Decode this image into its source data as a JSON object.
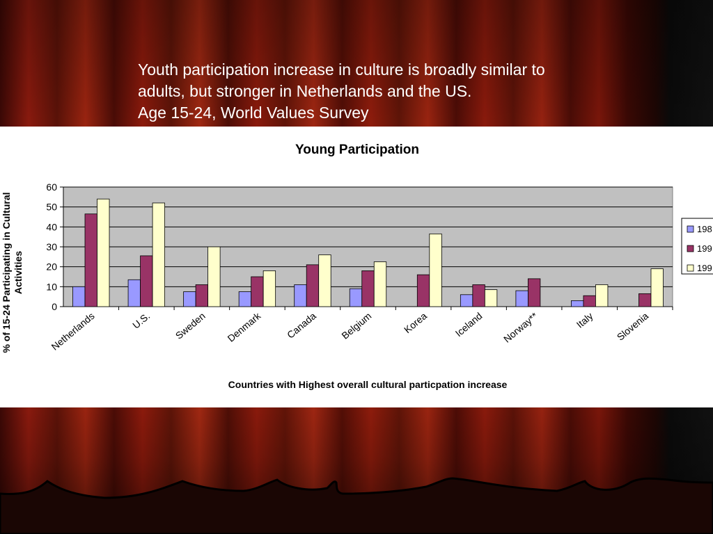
{
  "slide": {
    "heading_line1": "Youth participation increase in culture is broadly similar to",
    "heading_line2": "adults, but stronger in Netherlands and the US.",
    "heading_line3": "Age 15-24, World Values Survey"
  },
  "colors": {
    "series": [
      "#9999ff",
      "#993366",
      "#ffffcc"
    ],
    "plot_background": "#c0c0c0"
  },
  "chart_data": {
    "type": "bar",
    "title": "Young Participation",
    "xlabel": "Countries with Highest overall cultural particpation increase",
    "ylabel": "% of 15-24 Participating in Cultural Activities",
    "ylabel_lines": [
      "% of 15-24 Participating in Cultural",
      "Activities"
    ],
    "ylim": [
      0,
      60
    ],
    "yticks": [
      0,
      10,
      20,
      30,
      40,
      50,
      60
    ],
    "grid": true,
    "legend_position": "right",
    "categories": [
      "Netherlands",
      "U.S.",
      "Sweden",
      "Denmark",
      "Canada",
      "Belgium",
      "Korea",
      "Iceland",
      "Norway**",
      "Italy",
      "Slovenia"
    ],
    "series": [
      {
        "name": "198",
        "values": [
          10,
          13.5,
          7.5,
          7.5,
          11,
          9,
          null,
          6,
          8,
          3,
          null
        ]
      },
      {
        "name": "199",
        "values": [
          46.5,
          25.5,
          11,
          15,
          21,
          18,
          16,
          11,
          14,
          5.5,
          6.5
        ]
      },
      {
        "name": "199",
        "values": [
          54,
          52,
          30,
          18,
          26,
          22.5,
          36.5,
          8.5,
          null,
          11,
          19
        ]
      }
    ]
  }
}
